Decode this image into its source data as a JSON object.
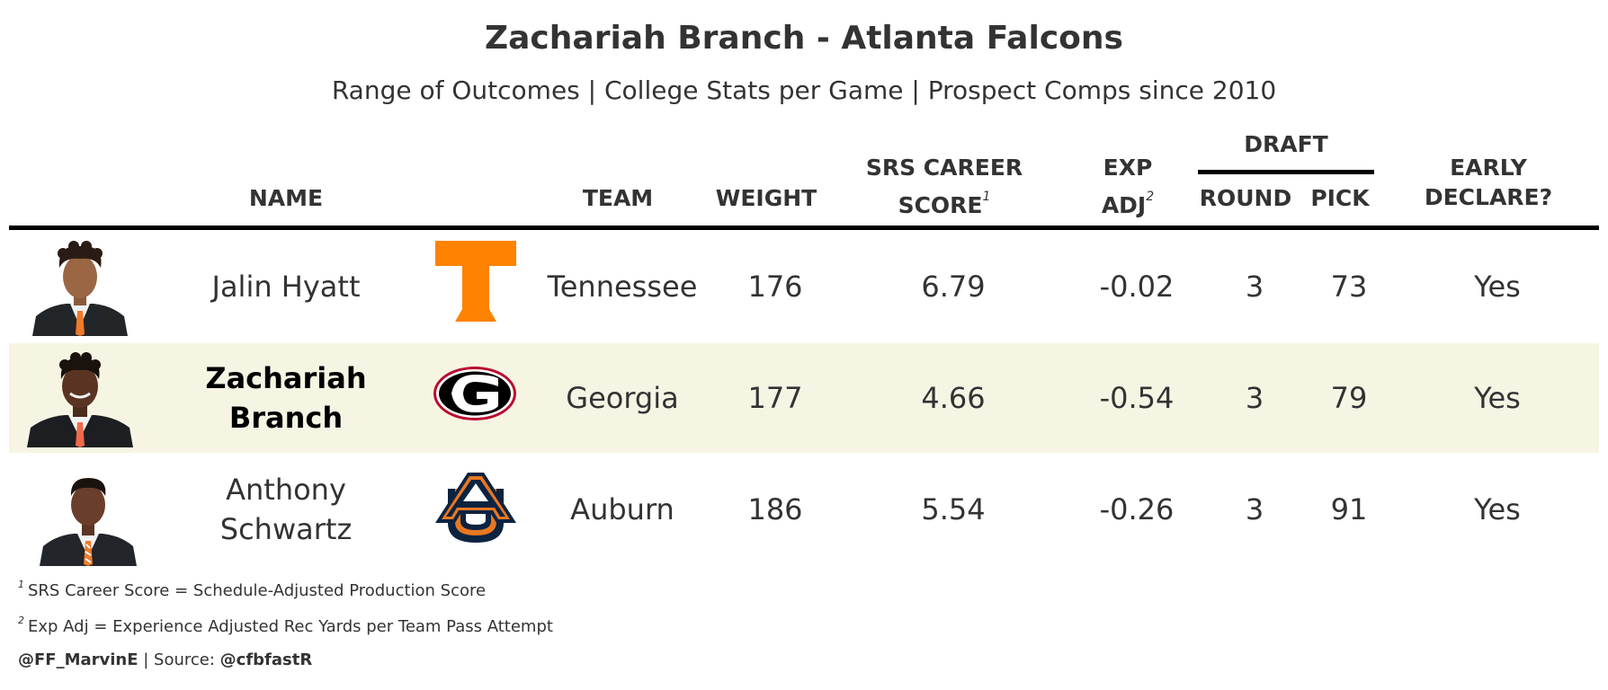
{
  "title": "Zachariah Branch - Atlanta Falcons",
  "subtitle": "Range of Outcomes | College Stats per Game | Prospect Comps since 2010",
  "headers": {
    "name": "NAME",
    "team": "TEAM",
    "weight": "WEIGHT",
    "srs_line1": "SRS CAREER",
    "srs_line2": "SCORE",
    "srs_note": "1",
    "exp_line1": "EXP",
    "exp_line2": "ADJ",
    "exp_note": "2",
    "draft_spanner": "DRAFT",
    "round": "ROUND",
    "pick": "PICK",
    "early_line1": "EARLY",
    "early_line2": "DECLARE?"
  },
  "chart_data": {
    "type": "table",
    "columns": [
      "NAME",
      "TEAM",
      "WEIGHT",
      "SRS CAREER SCORE",
      "EXP ADJ",
      "ROUND",
      "PICK",
      "EARLY DECLARE?"
    ],
    "rows": [
      {
        "name_line1": "Jalin Hyatt",
        "name_line2": "",
        "highlight": false,
        "team": "Tennessee",
        "logo": "tennessee-t-logo",
        "weight": "176",
        "srs": "6.79",
        "exp_adj": "-0.02",
        "round": "3",
        "pick": "73",
        "early_declare": "Yes"
      },
      {
        "name_line1": "Zachariah",
        "name_line2": "Branch",
        "highlight": true,
        "team": "Georgia",
        "logo": "georgia-g-logo",
        "weight": "177",
        "srs": "4.66",
        "exp_adj": "-0.54",
        "round": "3",
        "pick": "79",
        "early_declare": "Yes"
      },
      {
        "name_line1": "Anthony",
        "name_line2": "Schwartz",
        "highlight": false,
        "team": "Auburn",
        "logo": "auburn-au-logo",
        "weight": "186",
        "srs": "5.54",
        "exp_adj": "-0.26",
        "round": "3",
        "pick": "91",
        "early_declare": "Yes"
      }
    ]
  },
  "colors": {
    "highlight_row": "#f6f5e4",
    "tennessee_orange": "#ff8200",
    "georgia_red": "#ba0c2f",
    "auburn_navy": "#0c2340",
    "auburn_orange": "#e87722"
  },
  "footnotes": {
    "note1_mark": "1",
    "note1_text": "SRS Career Score = Schedule-Adjusted Production Score",
    "note2_mark": "2",
    "note2_text": "Exp Adj = Experience Adjusted Rec Yards per Team Pass Attempt"
  },
  "credit": {
    "author": "@FF_MarvinE",
    "separator": " | Source: ",
    "source": "@cfbfastR"
  }
}
